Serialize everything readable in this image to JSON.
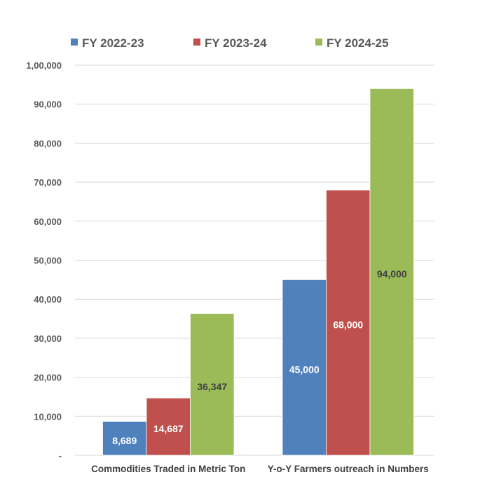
{
  "chart_data": {
    "type": "bar",
    "title": "",
    "xlabel": "",
    "ylabel": "",
    "categories": [
      "Commodities Traded in Metric Ton",
      "Y-o-Y Farmers outreach in Numbers"
    ],
    "series": [
      {
        "name": "FY 2022-23",
        "values": [
          8689,
          45000
        ],
        "labels": [
          "8,689",
          "45,000"
        ],
        "color": "#4F81BD",
        "label_color": "#FFFFFF"
      },
      {
        "name": "FY 2023-24",
        "values": [
          14687,
          68000
        ],
        "labels": [
          "14,687",
          "68,000"
        ],
        "color": "#C0504D",
        "label_color": "#FFFFFF"
      },
      {
        "name": "FY 2024-25",
        "values": [
          36347,
          94000
        ],
        "labels": [
          "36,347",
          "94,000"
        ],
        "color": "#9BBB59",
        "label_color": "#404040"
      }
    ],
    "ylim": [
      0,
      100000
    ],
    "yticks": [
      0,
      10000,
      20000,
      30000,
      40000,
      50000,
      60000,
      70000,
      80000,
      90000,
      100000
    ],
    "ytick_labels": [
      "-",
      "10,000",
      "20,000",
      "30,000",
      "40,000",
      "50,000",
      "60,000",
      "70,000",
      "80,000",
      "90,000",
      "1,00,000"
    ],
    "grid": true,
    "legend_position": "top"
  }
}
